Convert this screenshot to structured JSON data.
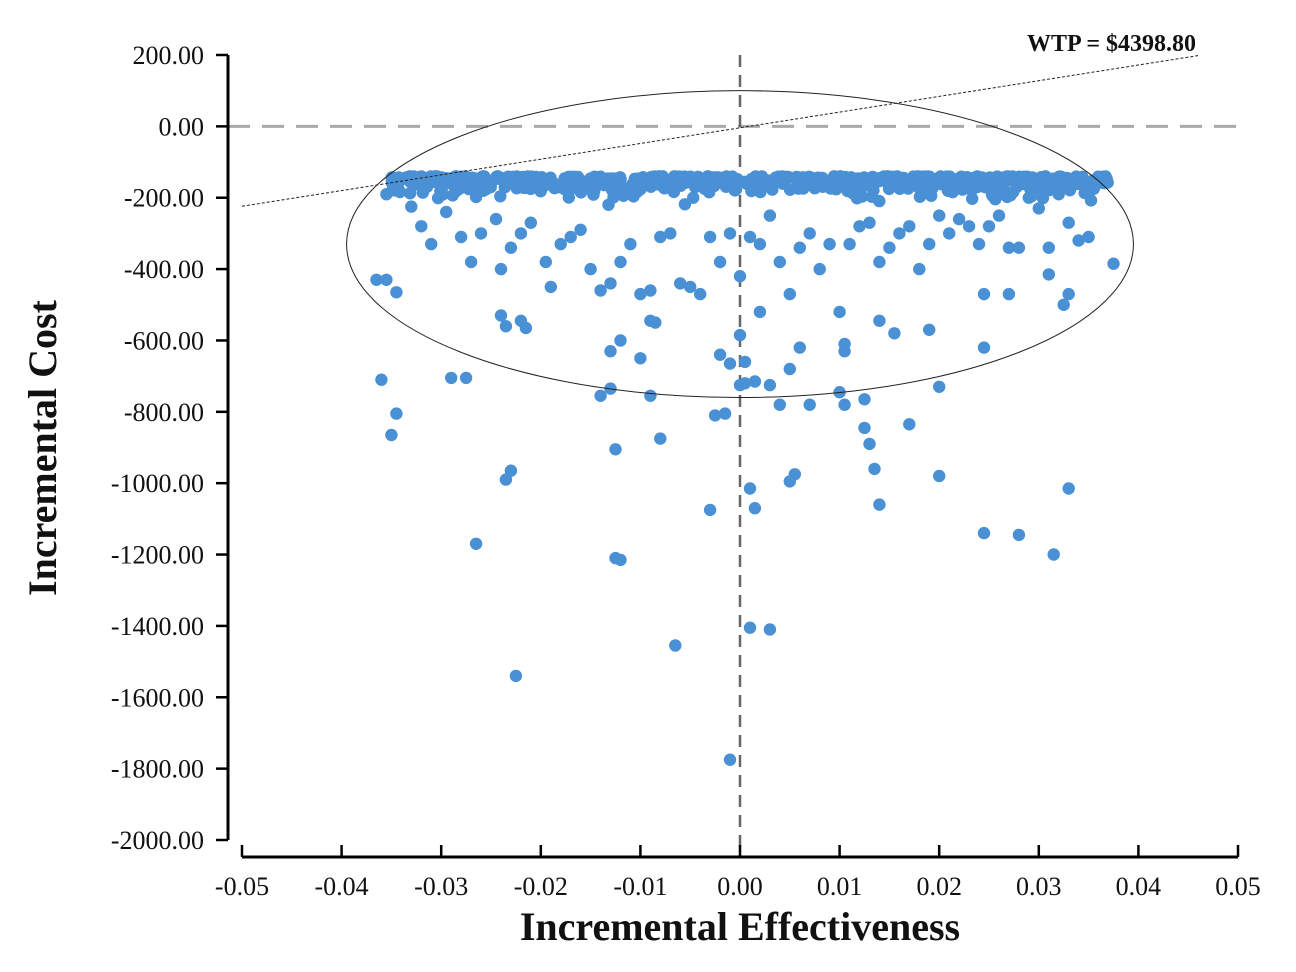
{
  "chart_data": {
    "type": "scatter",
    "title": "",
    "xlabel": "Incremental Effectiveness",
    "ylabel": "Incremental Cost",
    "xlim": [
      -0.05,
      0.05
    ],
    "ylim": [
      -2000,
      200
    ],
    "x_ticks": [
      -0.05,
      -0.04,
      -0.03,
      -0.02,
      -0.01,
      0.0,
      0.01,
      0.02,
      0.03,
      0.04,
      0.05
    ],
    "x_tick_labels": [
      "-0.05",
      "-0.04",
      "-0.03",
      "-0.02",
      "-0.01",
      "0.00",
      "0.01",
      "0.02",
      "0.03",
      "0.04",
      "0.05"
    ],
    "y_ticks": [
      200,
      0,
      -200,
      -400,
      -600,
      -800,
      -1000,
      -1200,
      -1400,
      -1600,
      -1800,
      -2000
    ],
    "y_tick_labels": [
      "200.00",
      "0.00",
      "-200.00",
      "-400.00",
      "-600.00",
      "-800.00",
      "-1000.00",
      "-1200.00",
      "-1400.00",
      "-1600.00",
      "-1800.00",
      "-2000.00"
    ],
    "point_color": "#4a90d4",
    "reference_line_color": "#aaaaaa",
    "wtp": {
      "label": "WTP = $4398.80",
      "slope": 4398.8,
      "intercept": -4,
      "x_range": [
        -0.05,
        0.046
      ]
    },
    "confidence_ellipse": {
      "center": [
        0.0,
        -330
      ],
      "semi_axis_x": 0.0395,
      "semi_axis_y": 430
    },
    "core_band": {
      "count": 640,
      "x_range": [
        -0.035,
        0.037
      ],
      "y_top": -140,
      "y_decay": 45,
      "seed": 7
    },
    "series": [
      {
        "name": "Simulations",
        "points": [
          [
            -0.0355,
            -190
          ],
          [
            -0.0345,
            -180
          ],
          [
            -0.033,
            -225
          ],
          [
            -0.032,
            -280
          ],
          [
            -0.031,
            -330
          ],
          [
            -0.0295,
            -240
          ],
          [
            -0.028,
            -310
          ],
          [
            -0.027,
            -380
          ],
          [
            -0.026,
            -300
          ],
          [
            -0.0245,
            -260
          ],
          [
            -0.024,
            -400
          ],
          [
            -0.023,
            -340
          ],
          [
            -0.022,
            -300
          ],
          [
            -0.021,
            -270
          ],
          [
            -0.0195,
            -380
          ],
          [
            -0.019,
            -450
          ],
          [
            -0.018,
            -330
          ],
          [
            -0.017,
            -310
          ],
          [
            -0.016,
            -290
          ],
          [
            -0.015,
            -400
          ],
          [
            -0.014,
            -460
          ],
          [
            -0.013,
            -440
          ],
          [
            -0.012,
            -380
          ],
          [
            -0.011,
            -330
          ],
          [
            -0.01,
            -470
          ],
          [
            -0.009,
            -460
          ],
          [
            -0.008,
            -310
          ],
          [
            -0.007,
            -300
          ],
          [
            -0.006,
            -440
          ],
          [
            -0.005,
            -450
          ],
          [
            -0.004,
            -470
          ],
          [
            -0.003,
            -310
          ],
          [
            -0.002,
            -380
          ],
          [
            -0.001,
            -300
          ],
          [
            0.0,
            -420
          ],
          [
            0.001,
            -310
          ],
          [
            0.002,
            -330
          ],
          [
            0.003,
            -250
          ],
          [
            0.004,
            -380
          ],
          [
            0.005,
            -470
          ],
          [
            0.006,
            -340
          ],
          [
            0.007,
            -300
          ],
          [
            0.008,
            -400
          ],
          [
            0.009,
            -330
          ],
          [
            0.01,
            -520
          ],
          [
            0.011,
            -330
          ],
          [
            0.012,
            -280
          ],
          [
            0.013,
            -270
          ],
          [
            0.014,
            -380
          ],
          [
            0.015,
            -340
          ],
          [
            0.016,
            -300
          ],
          [
            0.017,
            -280
          ],
          [
            0.018,
            -400
          ],
          [
            0.019,
            -330
          ],
          [
            0.02,
            -250
          ],
          [
            0.021,
            -300
          ],
          [
            0.022,
            -260
          ],
          [
            0.023,
            -280
          ],
          [
            0.024,
            -330
          ],
          [
            0.025,
            -280
          ],
          [
            0.026,
            -250
          ],
          [
            0.027,
            -340
          ],
          [
            0.028,
            -340
          ],
          [
            0.029,
            -200
          ],
          [
            0.03,
            -230
          ],
          [
            0.031,
            -340
          ],
          [
            0.032,
            -190
          ],
          [
            0.033,
            -270
          ],
          [
            0.034,
            -320
          ],
          [
            0.035,
            -310
          ],
          [
            0.036,
            -150
          ],
          [
            0.0375,
            -385
          ],
          [
            -0.0365,
            -430
          ],
          [
            -0.0355,
            -430
          ],
          [
            -0.0345,
            -465
          ],
          [
            -0.024,
            -530
          ],
          [
            -0.0235,
            -560
          ],
          [
            -0.022,
            -545
          ],
          [
            -0.0215,
            -565
          ],
          [
            -0.013,
            -630
          ],
          [
            -0.012,
            -600
          ],
          [
            -0.01,
            -650
          ],
          [
            -0.009,
            -545
          ],
          [
            -0.0085,
            -550
          ],
          [
            -0.002,
            -640
          ],
          [
            -0.001,
            -665
          ],
          [
            0.0,
            -585
          ],
          [
            0.0005,
            -660
          ],
          [
            0.002,
            -520
          ],
          [
            0.005,
            -680
          ],
          [
            0.006,
            -620
          ],
          [
            0.0105,
            -610
          ],
          [
            0.0105,
            -630
          ],
          [
            0.014,
            -545
          ],
          [
            0.0155,
            -580
          ],
          [
            0.019,
            -570
          ],
          [
            0.0245,
            -620
          ],
          [
            0.0245,
            -470
          ],
          [
            0.027,
            -470
          ],
          [
            0.0325,
            -500
          ],
          [
            0.033,
            -470
          ],
          [
            0.031,
            -415
          ],
          [
            -0.036,
            -710
          ],
          [
            -0.029,
            -705
          ],
          [
            -0.0275,
            -705
          ],
          [
            -0.0345,
            -805
          ],
          [
            -0.035,
            -865
          ],
          [
            -0.014,
            -755
          ],
          [
            -0.013,
            -735
          ],
          [
            -0.009,
            -755
          ],
          [
            -0.008,
            -875
          ],
          [
            -0.0025,
            -810
          ],
          [
            -0.0015,
            -805
          ],
          [
            0.0,
            -725
          ],
          [
            0.0005,
            -720
          ],
          [
            0.0015,
            -715
          ],
          [
            0.003,
            -725
          ],
          [
            0.004,
            -780
          ],
          [
            0.007,
            -780
          ],
          [
            0.01,
            -745
          ],
          [
            0.0105,
            -780
          ],
          [
            0.0125,
            -765
          ],
          [
            0.0125,
            -845
          ],
          [
            0.013,
            -890
          ],
          [
            0.017,
            -835
          ],
          [
            0.02,
            -730
          ],
          [
            -0.0125,
            -905
          ],
          [
            -0.0235,
            -990
          ],
          [
            -0.023,
            -965
          ],
          [
            0.0055,
            -975
          ],
          [
            0.005,
            -995
          ],
          [
            0.0135,
            -960
          ],
          [
            0.014,
            -1060
          ],
          [
            0.02,
            -980
          ],
          [
            0.001,
            -1015
          ],
          [
            0.0015,
            -1070
          ],
          [
            -0.003,
            -1075
          ],
          [
            0.033,
            -1015
          ],
          [
            -0.0265,
            -1170
          ],
          [
            -0.0125,
            -1210
          ],
          [
            -0.012,
            -1215
          ],
          [
            0.0245,
            -1140
          ],
          [
            0.028,
            -1145
          ],
          [
            0.0315,
            -1200
          ],
          [
            0.001,
            -1405
          ],
          [
            0.003,
            -1410
          ],
          [
            -0.0065,
            -1455
          ],
          [
            -0.0225,
            -1540
          ],
          [
            -0.001,
            -1775
          ]
        ]
      }
    ]
  }
}
